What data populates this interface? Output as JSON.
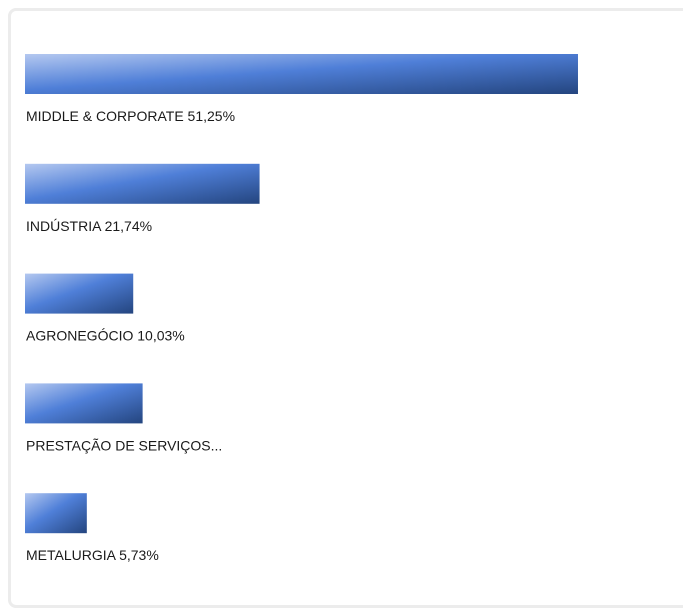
{
  "chart_data": {
    "type": "bar",
    "orientation": "horizontal",
    "categories": [
      "MIDDLE & CORPORATE",
      "INDÚSTRIA",
      "AGRONEGÓCIO",
      "PRESTAÇÃO DE SERVIÇOS...",
      "METALURGIA"
    ],
    "values": [
      51.25,
      21.74,
      10.03,
      10.9,
      5.73
    ],
    "value_labels": [
      "51,25%",
      "21,74%",
      "10,03%",
      null,
      "5,73%"
    ]
  }
}
